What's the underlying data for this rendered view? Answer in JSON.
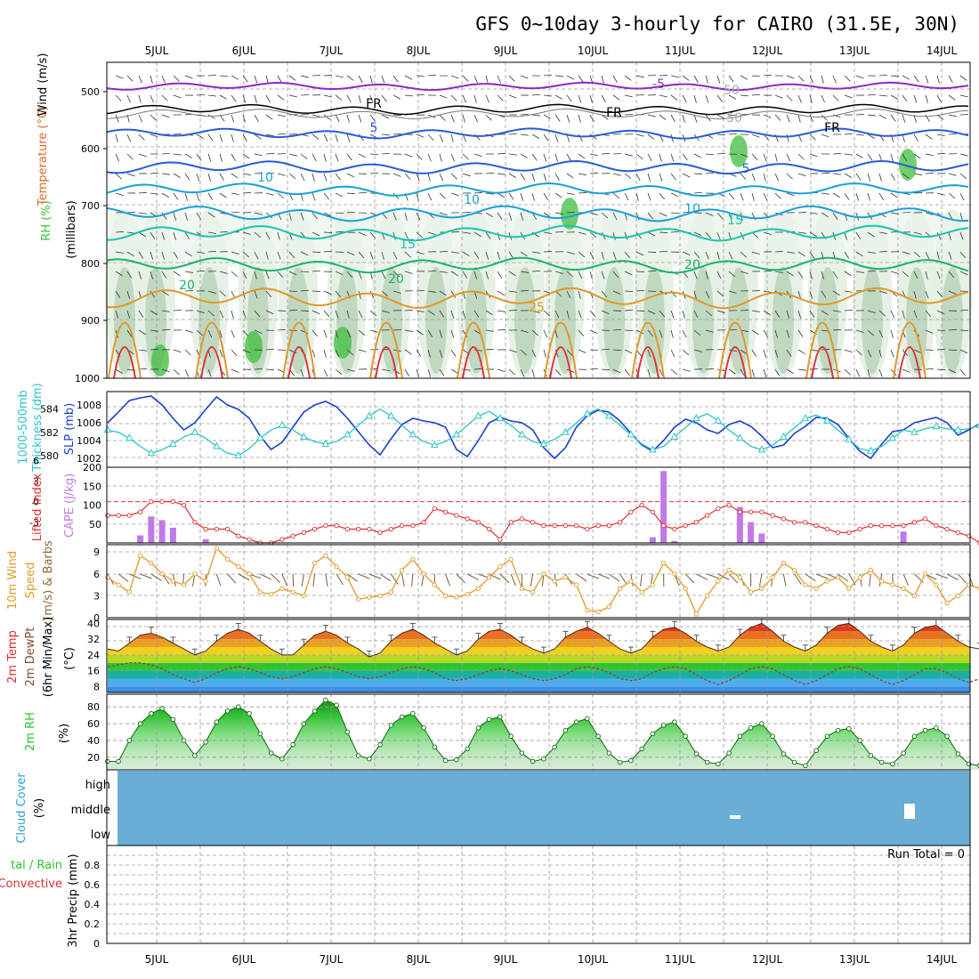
{
  "title": "GFS 0~10day 3-hourly for CAIRO (31.5E, 30N)",
  "dates": [
    "5JUL",
    "6JUL",
    "7JUL",
    "8JUL",
    "9JUL",
    "10JUL",
    "11JUL",
    "12JUL",
    "13JUL",
    "14JUL"
  ],
  "colors": {
    "rh_green": "#3fbf3f",
    "temp_purple": "#8a2bbf",
    "temp_blue": "#2a5ad8",
    "temp_cyan": "#1a9fd8",
    "temp_teal": "#19c4b0",
    "temp_green": "#19b36b",
    "temp_orange": "#e0982a",
    "temp_red": "#e03030",
    "slp_blue": "#1a3fcc",
    "thickness_cyan": "#2ec4c4",
    "lifted_red": "#e03030",
    "cape_purple": "#c07ae8",
    "wind_orange": "#e09a2a",
    "rh2m_green": "#2ec42e",
    "cloud_blue": "#6aaed6"
  },
  "panels": {
    "upper": {
      "labels": [
        "Wind (m/s)",
        "Temperature (°C)",
        "RH (%)",
        "(millibars)"
      ],
      "ticks": [
        "500",
        "600",
        "700",
        "800",
        "900",
        "1000"
      ],
      "contour_labels": [
        "-5",
        "FR",
        "FR",
        "FR",
        "5",
        "5",
        "10",
        "10",
        "10",
        "15",
        "15",
        "20",
        "20",
        "20",
        "25",
        "50",
        "50"
      ]
    },
    "slp": {
      "labels": [
        "1000-500mb",
        "Thickness (dm)",
        "SLP (mb)"
      ],
      "left_ticks": [
        "584",
        "582",
        "580"
      ],
      "right_ticks": [
        "1008",
        "1006",
        "1004",
        "1002"
      ]
    },
    "cape": {
      "labels": [
        "Lifted Index",
        "CAPE (J/kg)"
      ],
      "left_ticks": [
        "-3",
        "0",
        "3",
        "6"
      ],
      "right_ticks": [
        "200",
        "150",
        "100",
        "50"
      ]
    },
    "wind": {
      "labels": [
        "10m Wind",
        "Speed",
        "(m/s) & Barbs"
      ],
      "ticks": [
        "9",
        "6",
        "3",
        "0"
      ]
    },
    "temp": {
      "labels": [
        "2m Temp",
        "2m DewPt",
        "(6hr Min/Max)",
        "(°C)"
      ],
      "ticks": [
        "40",
        "32",
        "24",
        "16",
        "8"
      ]
    },
    "rh": {
      "labels": [
        "2m RH",
        "(%)"
      ],
      "ticks": [
        "80",
        "60",
        "40",
        "20"
      ]
    },
    "cloud": {
      "labels": [
        "Cloud Cover",
        "(%)"
      ],
      "levels": [
        "high",
        "middle",
        "low"
      ]
    },
    "precip": {
      "labels": [
        "tal / Rain",
        "Convective",
        "3hr Precip (mm)"
      ],
      "ticks": [
        "0.8",
        "0.6",
        "0.4",
        "0.2",
        "0"
      ],
      "run_total": "Run Total = 0"
    }
  },
  "chart_data": [
    {
      "type": "line",
      "title": "1000-500mb Thickness (dm) / SLP (mb)",
      "series": [
        {
          "name": "SLP (mb)",
          "values": [
            1006.0,
            1007.2,
            1008.5,
            1008.8,
            1009.0,
            1008.0,
            1006.5,
            1005.2,
            1006.0,
            1007.5,
            1008.9,
            1008.0,
            1007.5,
            1006.5,
            1004.5,
            1003.0,
            1003.8,
            1005.5,
            1007.2,
            1008.0,
            1008.4,
            1007.8,
            1006.5,
            1005.0,
            1003.5,
            1002.4,
            1004.2,
            1005.8,
            1006.5,
            1006.2,
            1006.0,
            1005.5,
            1003.0,
            1002.2,
            1004.0,
            1006.0,
            1006.6,
            1006.2,
            1006.0,
            1005.2,
            1003.2,
            1002.0,
            1003.2,
            1005.5,
            1006.8,
            1007.4,
            1007.2,
            1006.2,
            1004.8,
            1003.5,
            1002.8,
            1004.0,
            1005.5,
            1006.4,
            1006.0,
            1005.2,
            1004.8,
            1005.8,
            1006.2,
            1005.6,
            1004.5,
            1003.2,
            1003.5,
            1004.8,
            1005.6,
            1006.6,
            1006.5,
            1005.8,
            1004.2,
            1002.8,
            1002.0,
            1003.6,
            1005.0,
            1005.2,
            1006.0,
            1006.3,
            1006.6,
            1006.0,
            1004.6,
            1005.2,
            1005.9
          ]
        },
        {
          "name": "1000-500mb Thickness (dm)",
          "values": [
            582.2,
            582.0,
            581.5,
            580.8,
            580.2,
            580.5,
            581.0,
            581.6,
            582.0,
            581.5,
            580.8,
            580.2,
            580.0,
            580.6,
            581.5,
            582.2,
            582.6,
            582.2,
            581.6,
            581.2,
            581.0,
            581.2,
            581.8,
            582.6,
            583.4,
            584.0,
            583.4,
            582.6,
            581.8,
            581.2,
            580.9,
            581.2,
            581.8,
            582.6,
            583.4,
            583.8,
            583.2,
            582.6,
            581.8,
            581.2,
            581.0,
            581.4,
            582.0,
            582.8,
            583.6,
            584.0,
            583.4,
            582.6,
            581.8,
            581.0,
            580.5,
            580.8,
            581.6,
            582.4,
            583.2,
            583.6,
            583.0,
            582.2,
            581.5,
            580.8,
            580.5,
            580.9,
            581.6,
            582.4,
            583.2,
            583.5,
            583.0,
            582.2,
            581.4,
            580.6,
            580.4,
            580.8,
            581.5,
            582.2,
            582.0,
            582.3,
            582.5,
            582.3,
            582.2,
            582.3,
            582.6
          ]
        }
      ],
      "ylim_left": [
        579,
        585.5
      ],
      "ylim_right": [
        1001,
        1009.5
      ]
    },
    {
      "type": "bar",
      "title": "Lifted Index / CAPE (J/kg)",
      "series": [
        {
          "name": "CAPE (J/kg)",
          "values": [
            0,
            0,
            0,
            20,
            70,
            60,
            40,
            0,
            0,
            10,
            0,
            0,
            0,
            0,
            0,
            0,
            0,
            0,
            0,
            0,
            0,
            0,
            0,
            0,
            0,
            0,
            0,
            0,
            0,
            0,
            0,
            0,
            0,
            0,
            0,
            0,
            0,
            0,
            0,
            0,
            0,
            0,
            0,
            0,
            0,
            0,
            0,
            0,
            0,
            0,
            0,
            0,
            0,
            0,
            0,
            0,
            0,
            0,
            0,
            0,
            0,
            0,
            0,
            0,
            0,
            0,
            0,
            0,
            0,
            0,
            0,
            0,
            0,
            0,
            0,
            0,
            0,
            0,
            0,
            0,
            0
          ]
        },
        {
          "name": "Lifted Index",
          "values": [
            2,
            2,
            2,
            1.5,
            0,
            0,
            0,
            0.5,
            3,
            4,
            4,
            4,
            5,
            5.5,
            6,
            6,
            5.5,
            5,
            4.5,
            4,
            3.5,
            3.5,
            4,
            4,
            4,
            4.5,
            4,
            3.5,
            3.5,
            3,
            1,
            1.5,
            2,
            2.5,
            3,
            4,
            5.5,
            3,
            2.5,
            3,
            3.5,
            3.5,
            3.5,
            3.5,
            4,
            3.5,
            3.5,
            3,
            1.5,
            0.5,
            1.5,
            3.5,
            4,
            3.5,
            3,
            2,
            1,
            0.5,
            1.5,
            1.5,
            1.5,
            2,
            2.5,
            3,
            3,
            3.5,
            4,
            4.5,
            4.5,
            4,
            3.5,
            3.5,
            3.5,
            3.5,
            3,
            2.5,
            3.5,
            4,
            4.5,
            5,
            6
          ]
        }
      ],
      "ylim_left": [
        6,
        -5
      ],
      "ylim_right": [
        0,
        200
      ]
    },
    {
      "type": "line",
      "title": "10m Wind Speed (m/s)",
      "series": [
        {
          "name": "10m Wind Speed (m/s)",
          "values": [
            5.5,
            4.5,
            3.5,
            8.5,
            7.5,
            6,
            5,
            4.5,
            6,
            5,
            9.5,
            8,
            7,
            6,
            3.5,
            3.2,
            4,
            3.5,
            3,
            7.5,
            8.5,
            7,
            5.5,
            2.5,
            2.8,
            3,
            3.5,
            6.5,
            8,
            6,
            4.5,
            3,
            2.8,
            3.2,
            4,
            5.5,
            7,
            8,
            4,
            3.5,
            6,
            5,
            5.5,
            4.5,
            1,
            0.8,
            1.5,
            4,
            5,
            3.5,
            4.5,
            7.5,
            6,
            4,
            0.5,
            3,
            5,
            6.5,
            5.5,
            3.5,
            4,
            5.5,
            7.5,
            6.5,
            4.5,
            4,
            5,
            5.5,
            4,
            5.5,
            6.5,
            5,
            4.5,
            4,
            3,
            6,
            4.5,
            2,
            3,
            4.5,
            4
          ]
        }
      ],
      "ylim": [
        0,
        10
      ]
    },
    {
      "type": "area",
      "title": "2m Temp / 2m DewPt (°C)",
      "series": [
        {
          "name": "2m Temp",
          "values": [
            27,
            26,
            30,
            34,
            35,
            33,
            30,
            27,
            24,
            26,
            31,
            35,
            37,
            35,
            31,
            27,
            24,
            24,
            29,
            34,
            36,
            34,
            30,
            27,
            23,
            25,
            31,
            35,
            37,
            34,
            30,
            27,
            24,
            26,
            32,
            36,
            37,
            34,
            30,
            27,
            25,
            27,
            33,
            36,
            38,
            35,
            31,
            27,
            25,
            27,
            33,
            37,
            38,
            35,
            31,
            28,
            26,
            28,
            34,
            38,
            40,
            36,
            31,
            28,
            26,
            29,
            35,
            39,
            40,
            36,
            31,
            28,
            26,
            29,
            35,
            38,
            39,
            35,
            31,
            28,
            27,
            34
          ]
        },
        {
          "name": "2m DewPt",
          "values": [
            18,
            19,
            20,
            20,
            19,
            17,
            14,
            12,
            10,
            12,
            15,
            17,
            18,
            17,
            15,
            13,
            12,
            13,
            15,
            17,
            18,
            17,
            15,
            13,
            12,
            13,
            15,
            17,
            18,
            17,
            15,
            12,
            11,
            12,
            14,
            16,
            17,
            16,
            14,
            12,
            11,
            12,
            14,
            17,
            18,
            17,
            15,
            12,
            11,
            12,
            15,
            17,
            18,
            17,
            14,
            11,
            9,
            11,
            14,
            17,
            18,
            17,
            14,
            11,
            9,
            11,
            14,
            17,
            18,
            17,
            14,
            11,
            9,
            11,
            14,
            17,
            17,
            15,
            12,
            10,
            12,
            15
          ]
        }
      ],
      "ylim": [
        5,
        42
      ]
    },
    {
      "type": "area",
      "title": "2m RH (%)",
      "series": [
        {
          "name": "2m RH (%)",
          "values": [
            15,
            15,
            40,
            60,
            72,
            78,
            65,
            40,
            22,
            38,
            62,
            75,
            80,
            72,
            48,
            25,
            18,
            35,
            60,
            75,
            88,
            82,
            50,
            22,
            18,
            35,
            58,
            68,
            72,
            55,
            32,
            16,
            17,
            30,
            55,
            65,
            68,
            45,
            25,
            15,
            18,
            32,
            52,
            62,
            66,
            45,
            25,
            14,
            16,
            30,
            48,
            58,
            62,
            45,
            24,
            14,
            12,
            25,
            45,
            55,
            60,
            45,
            24,
            14,
            10,
            28,
            45,
            52,
            54,
            40,
            22,
            14,
            12,
            25,
            45,
            52,
            55,
            45,
            24,
            12,
            10,
            28,
            45,
            48,
            38,
            20
          ]
        }
      ],
      "ylim": [
        10,
        90
      ]
    },
    {
      "type": "bar",
      "title": "3hr Precip (mm)",
      "series": [
        {
          "name": "3hr Precip (mm)",
          "values": [
            0,
            0,
            0,
            0,
            0,
            0,
            0,
            0,
            0,
            0,
            0,
            0,
            0,
            0,
            0,
            0,
            0,
            0,
            0,
            0,
            0,
            0,
            0,
            0,
            0,
            0,
            0,
            0,
            0,
            0,
            0,
            0,
            0,
            0,
            0,
            0,
            0,
            0,
            0,
            0,
            0,
            0,
            0,
            0,
            0,
            0,
            0,
            0,
            0,
            0,
            0,
            0,
            0,
            0,
            0,
            0,
            0,
            0,
            0,
            0,
            0,
            0,
            0,
            0,
            0,
            0,
            0,
            0,
            0,
            0,
            0,
            0,
            0,
            0,
            0,
            0,
            0,
            0,
            0,
            0,
            0
          ]
        }
      ],
      "ylim": [
        0,
        1.0
      ]
    }
  ]
}
